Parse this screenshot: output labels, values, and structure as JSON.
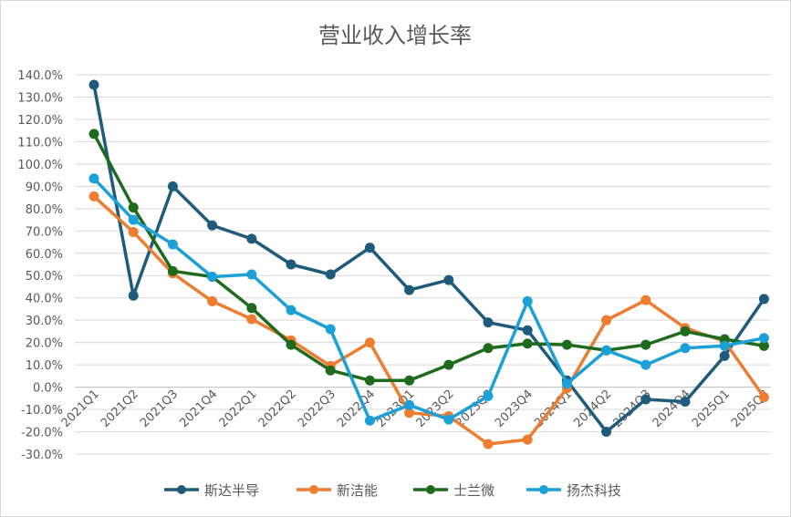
{
  "chart_data": {
    "type": "line",
    "title": "营业收入增长率",
    "categories": [
      "2021Q1",
      "2021Q2",
      "2021Q3",
      "2021Q4",
      "2022Q1",
      "2022Q2",
      "2022Q3",
      "2022Q4",
      "2023Q1",
      "2023Q2",
      "2023Q3",
      "2023Q4",
      "2024Q1",
      "2024Q2",
      "2024Q3",
      "2024Q4",
      "2025Q1",
      "2025Q2"
    ],
    "ylim": [
      -30,
      140
    ],
    "ytick_step": 10,
    "ytick_labels": [
      "-30.0%",
      "-20.0%",
      "-10.0%",
      "0.0%",
      "10.0%",
      "20.0%",
      "30.0%",
      "40.0%",
      "50.0%",
      "60.0%",
      "70.0%",
      "80.0%",
      "90.0%",
      "100.0%",
      "110.0%",
      "120.0%",
      "130.0%",
      "140.0%"
    ],
    "grid": true,
    "legend_position": "bottom",
    "series": [
      {
        "name": "斯达半导",
        "color": "#1f5c7c",
        "values": [
          135.5,
          41.0,
          90.0,
          72.5,
          66.5,
          55.0,
          50.5,
          62.5,
          43.5,
          48.0,
          29.0,
          25.5,
          3.0,
          -20.0,
          -5.5,
          -6.5,
          14.0,
          39.5
        ]
      },
      {
        "name": "新洁能",
        "color": "#ed7d31",
        "values": [
          85.5,
          69.5,
          51.0,
          38.5,
          30.5,
          21.0,
          9.5,
          20.0,
          -11.5,
          -13.0,
          -25.5,
          -23.5,
          -0.5,
          30.0,
          39.0,
          26.5,
          20.5,
          -4.5
        ]
      },
      {
        "name": "士兰微",
        "color": "#1e6b1e",
        "values": [
          113.5,
          80.5,
          52.0,
          49.5,
          35.5,
          19.0,
          7.5,
          3.0,
          3.0,
          10.0,
          17.5,
          19.5,
          19.0,
          16.5,
          19.0,
          25.0,
          21.5,
          18.5
        ]
      },
      {
        "name": "扬杰科技",
        "color": "#1ca0d8",
        "values": [
          93.5,
          75.0,
          64.0,
          49.5,
          50.5,
          34.5,
          26.0,
          -15.0,
          -8.0,
          -14.5,
          -4.0,
          38.5,
          1.5,
          16.5,
          10.0,
          17.5,
          18.5,
          22.0
        ]
      }
    ]
  }
}
